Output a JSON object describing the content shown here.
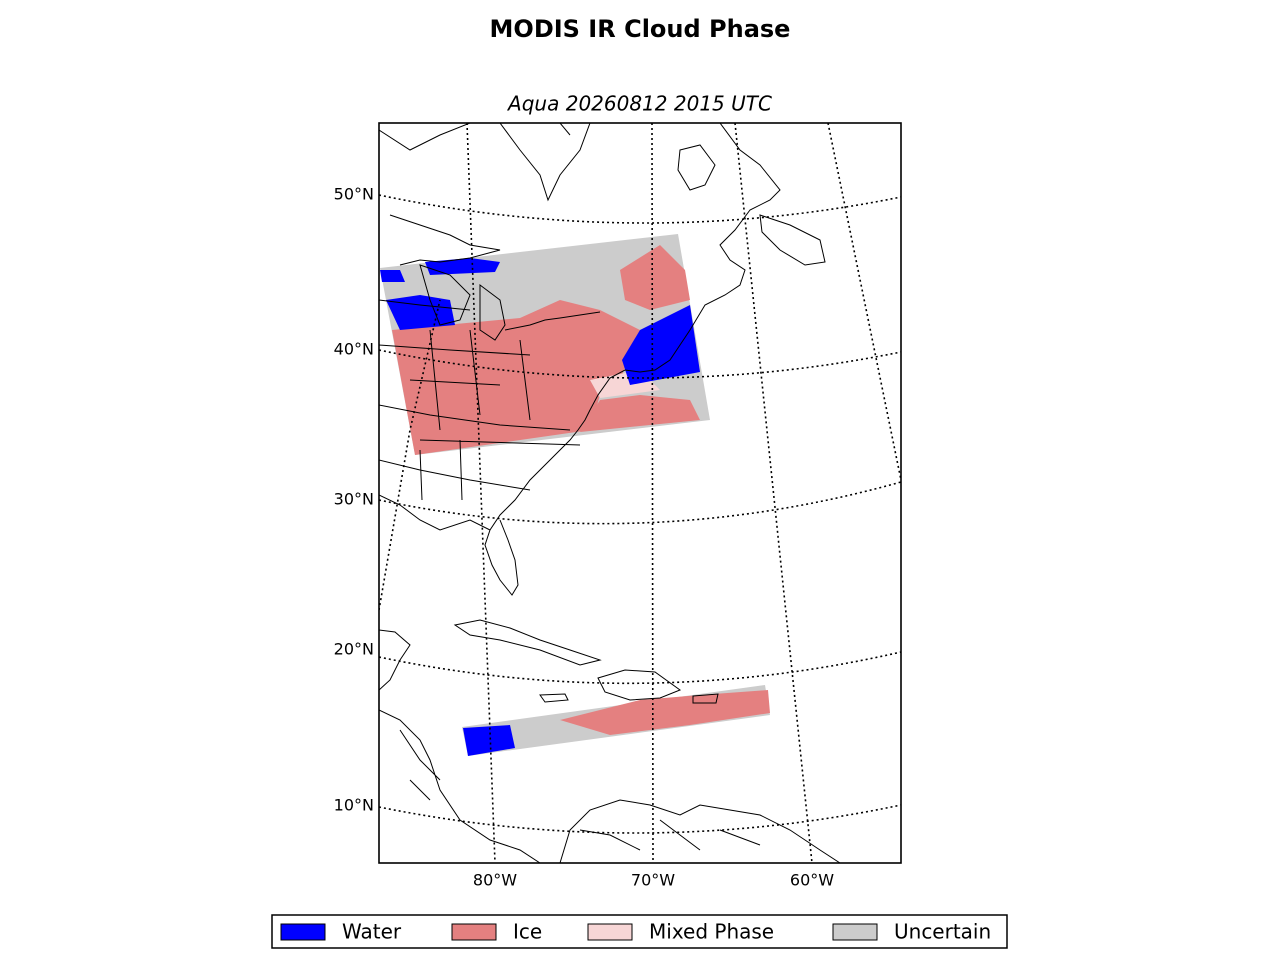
{
  "title": "MODIS IR Cloud Phase",
  "subtitle": "Aqua 20260812 2015 UTC",
  "latitude_labels": [
    "50°N",
    "40°N",
    "30°N",
    "20°N",
    "10°N"
  ],
  "longitude_labels": [
    "80°W",
    "70°W",
    "60°W"
  ],
  "legend": [
    {
      "name": "Water",
      "color": "#0000ff"
    },
    {
      "name": "Ice",
      "color": "#e48080"
    },
    {
      "name": "Mixed Phase",
      "color": "#f7d6d6"
    },
    {
      "name": "Uncertain",
      "color": "#cccccc"
    }
  ]
}
